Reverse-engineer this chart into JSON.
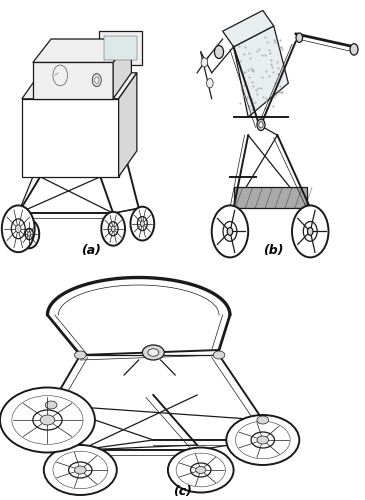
{
  "background_color": "#ffffff",
  "label_a": "(a)",
  "label_b": "(b)",
  "label_c": "(c)",
  "label_fontsize": 9,
  "fig_width": 3.65,
  "fig_height": 5.0,
  "dpi": 100,
  "lc": "#1a1a1a",
  "lw_thin": 0.5,
  "lw_med": 0.9,
  "lw_thick": 1.4,
  "lw_vthick": 2.0,
  "fc_white": "#ffffff",
  "fc_light": "#efefef",
  "fc_mid": "#d8d8d8",
  "fc_dark": "#aaaaaa",
  "fc_vdark": "#888888",
  "fc_dot": "#e8eef0"
}
